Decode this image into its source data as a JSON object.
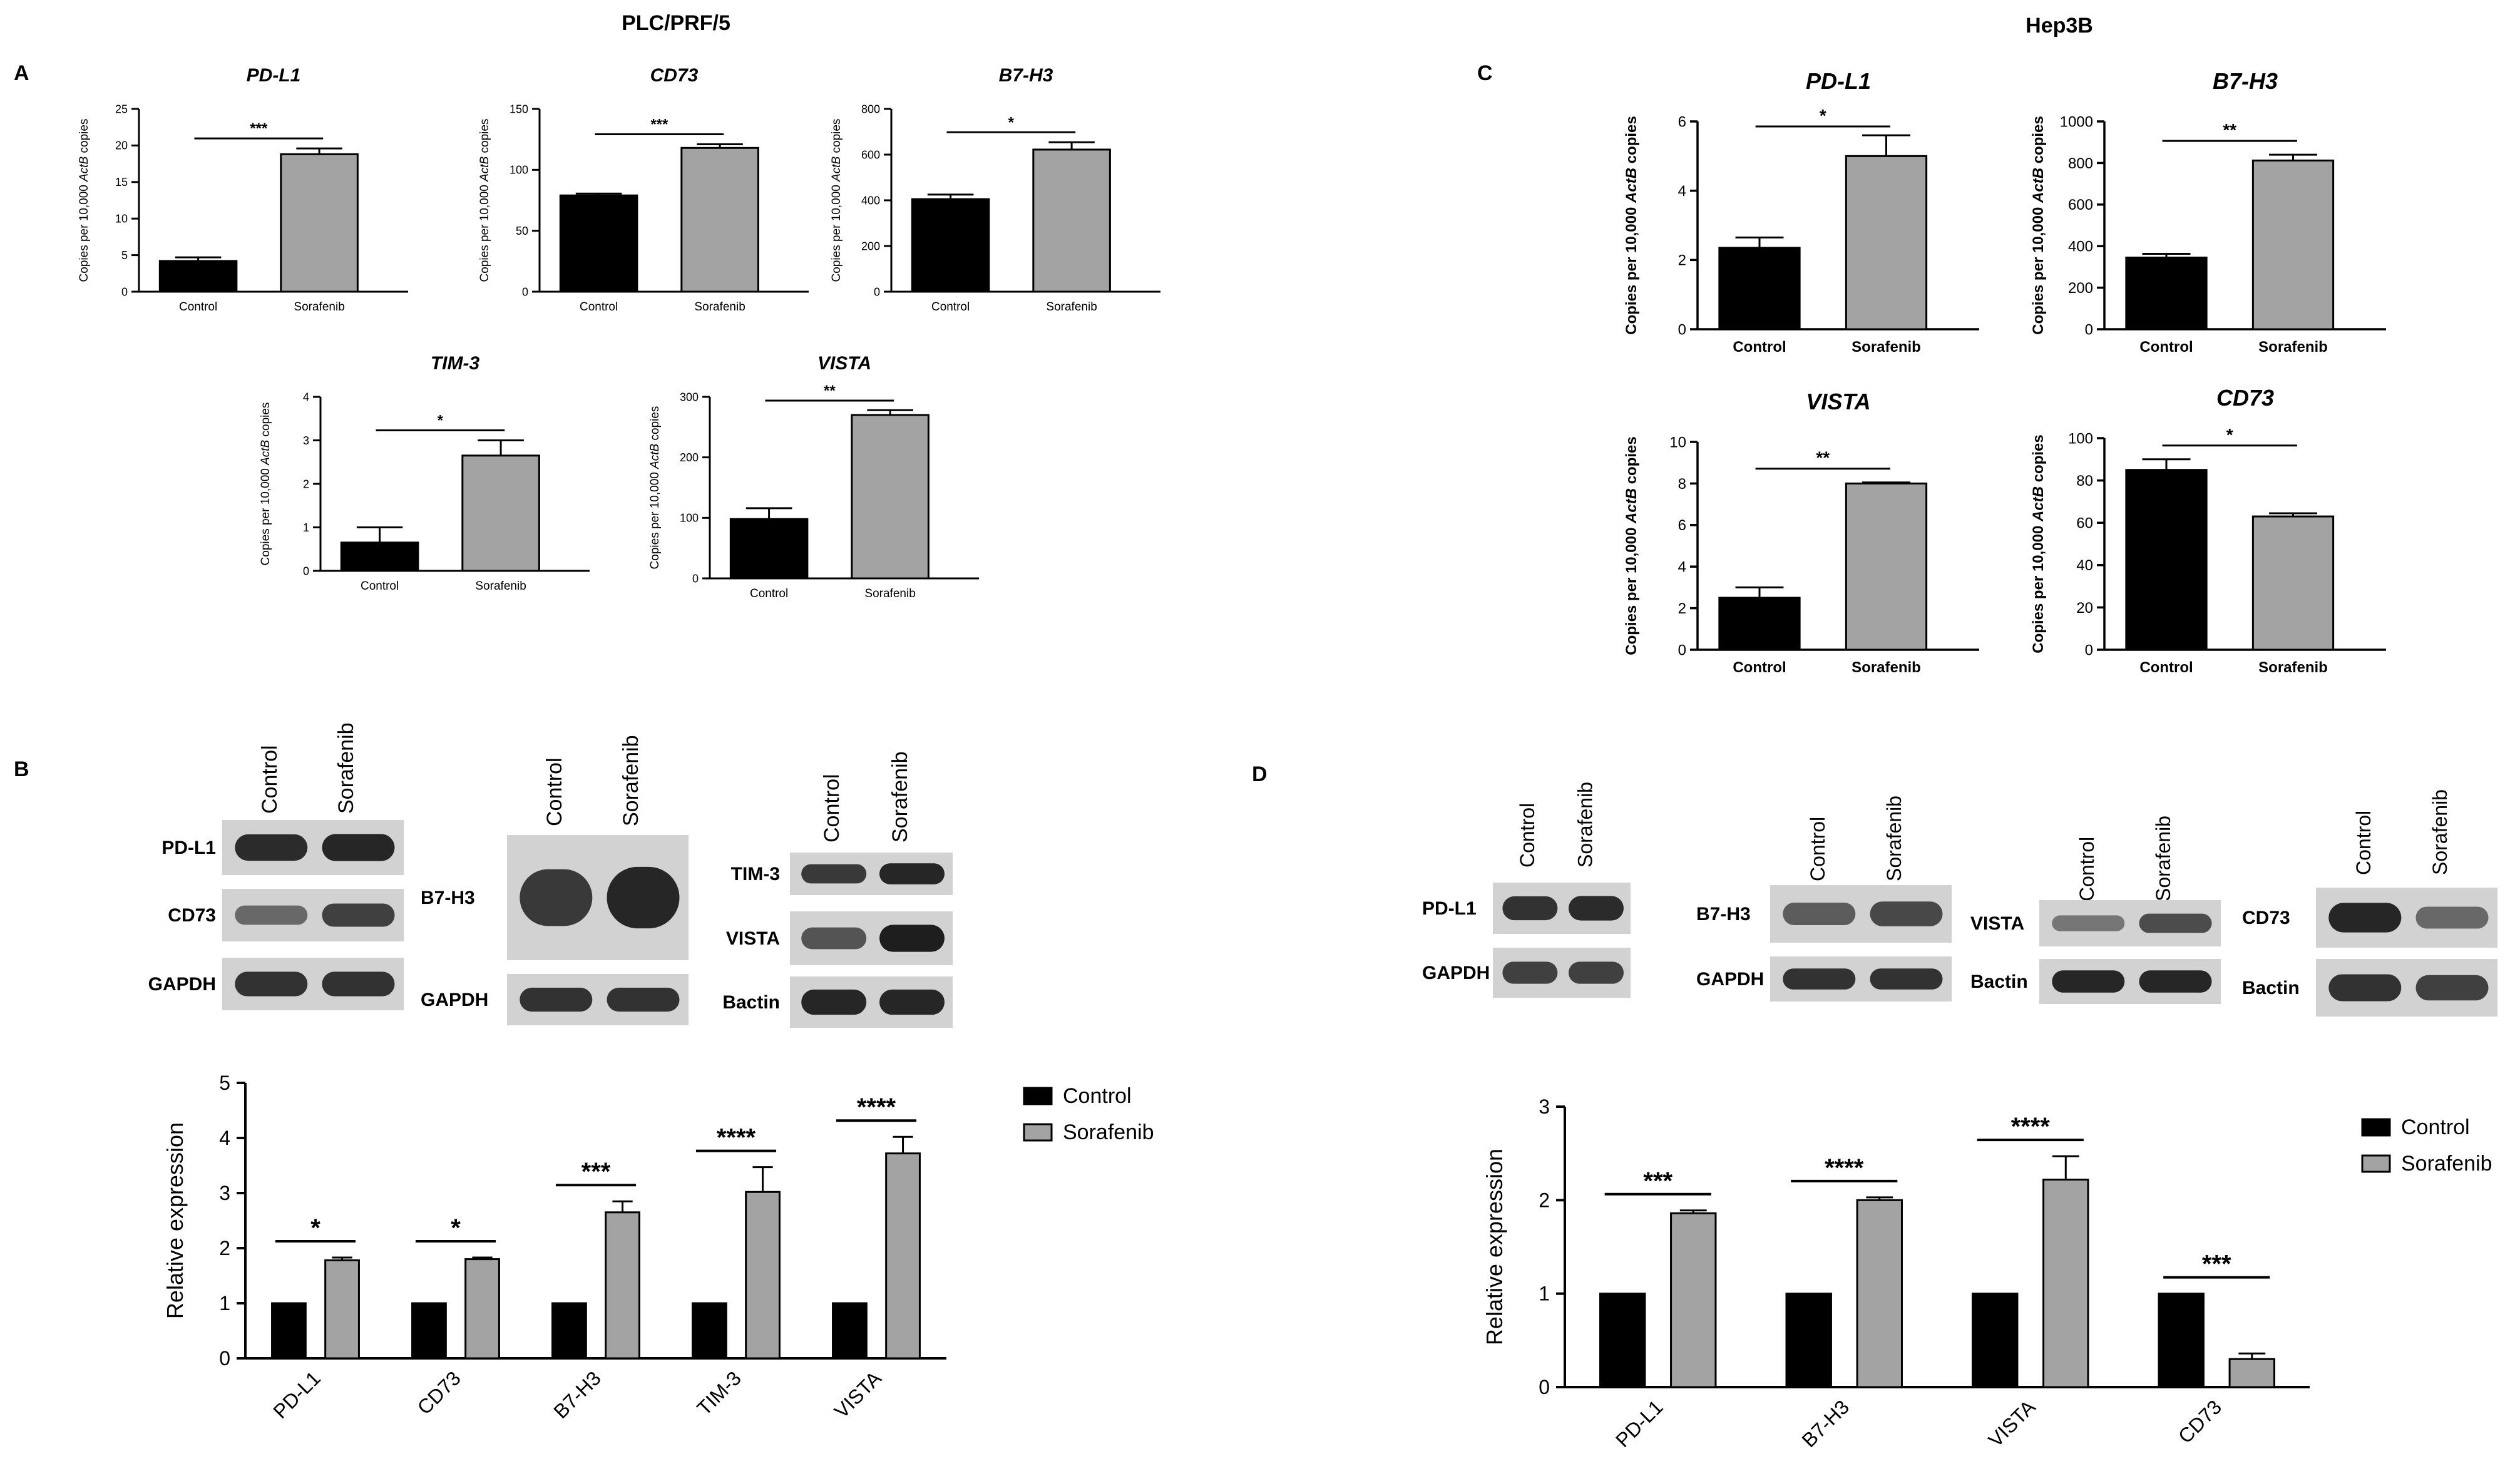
{
  "figure": {
    "cell_line_left": "PLC/PRF/5",
    "cell_line_right": "Hep3B",
    "panel_labels": [
      "A",
      "B",
      "C",
      "D"
    ]
  },
  "colors": {
    "control": "#000000",
    "sorafenib": "#a3a3a3",
    "blot_background": "#d2d2d2",
    "blot_band": "#1e1e1e"
  },
  "chart_data": [
    {
      "id": "A-PD-L1",
      "panel": "A",
      "type": "bar",
      "title": "PD-L1",
      "categories": [
        "Control",
        "Sorafenib"
      ],
      "values": [
        4.2,
        18.8
      ],
      "errors": [
        0.5,
        0.8
      ],
      "ylabel_prefix": "Copies per 10,000 ",
      "ylabel_italic": "ActB",
      "ylabel_suffix": " copies",
      "ylim": [
        0,
        25
      ],
      "yticks": [
        "0",
        "5",
        "10",
        "15",
        "20",
        "25"
      ],
      "significance": [
        {
          "from": 0,
          "to": 1,
          "label": "***"
        }
      ],
      "style": "small"
    },
    {
      "id": "A-CD73",
      "panel": "A",
      "type": "bar",
      "title": "CD73",
      "categories": [
        "Control",
        "Sorafenib"
      ],
      "values": [
        79,
        118
      ],
      "errors": [
        1.5,
        3
      ],
      "ylabel_prefix": "Copies per 10,000 ",
      "ylabel_italic": "ActB",
      "ylabel_suffix": " copies",
      "ylim": [
        0,
        150
      ],
      "yticks": [
        "0",
        "50",
        "100",
        "150"
      ],
      "significance": [
        {
          "from": 0,
          "to": 1,
          "label": "***"
        }
      ],
      "style": "small"
    },
    {
      "id": "A-B7-H3",
      "panel": "A",
      "type": "bar",
      "title": "B7-H3",
      "categories": [
        "Control",
        "Sorafenib"
      ],
      "values": [
        405,
        622
      ],
      "errors": [
        20,
        32
      ],
      "ylabel_prefix": "Copies per 10,000 ",
      "ylabel_italic": "ActB",
      "ylabel_suffix": " copies",
      "ylim": [
        0,
        800
      ],
      "yticks": [
        "0",
        "200",
        "400",
        "600",
        "800"
      ],
      "significance": [
        {
          "from": 0,
          "to": 1,
          "label": "*"
        }
      ],
      "style": "small"
    },
    {
      "id": "A-TIM-3",
      "panel": "A",
      "type": "bar",
      "title": "TIM-3",
      "categories": [
        "Control",
        "Sorafenib"
      ],
      "values": [
        0.65,
        2.65
      ],
      "errors": [
        0.35,
        0.35
      ],
      "ylabel_prefix": "Copies per 10,000 ",
      "ylabel_italic": "ActB",
      "ylabel_suffix": " copies",
      "ylim": [
        0,
        4
      ],
      "yticks": [
        "0",
        "1",
        "2",
        "3",
        "4"
      ],
      "significance": [
        {
          "from": 0,
          "to": 1,
          "label": "*"
        }
      ],
      "style": "small"
    },
    {
      "id": "A-VISTA",
      "panel": "A",
      "type": "bar",
      "title": "VISTA",
      "categories": [
        "Control",
        "Sorafenib"
      ],
      "values": [
        98,
        270
      ],
      "errors": [
        18,
        8
      ],
      "ylabel_prefix": "Copies per 10,000 ",
      "ylabel_italic": "ActB",
      "ylabel_suffix": " copies",
      "ylim": [
        0,
        300
      ],
      "yticks": [
        "0",
        "100",
        "200",
        "300"
      ],
      "significance": [
        {
          "from": 0,
          "to": 1,
          "label": "**"
        }
      ],
      "style": "small"
    },
    {
      "id": "C-PD-L1",
      "panel": "C",
      "type": "bar",
      "title": "PD-L1",
      "categories": [
        "Control",
        "Sorafenib"
      ],
      "values": [
        2.35,
        5.0
      ],
      "errors": [
        0.3,
        0.6
      ],
      "ylabel_prefix": "Copies per 10,000 ",
      "ylabel_italic": "ActB",
      "ylabel_suffix": " copies",
      "ylim": [
        0,
        6
      ],
      "yticks": [
        "0",
        "2",
        "4",
        "6"
      ],
      "significance": [
        {
          "from": 0,
          "to": 1,
          "label": "*"
        }
      ],
      "style": "large"
    },
    {
      "id": "C-B7-H3",
      "panel": "C",
      "type": "bar",
      "title": "B7-H3",
      "categories": [
        "Control",
        "Sorafenib"
      ],
      "values": [
        345,
        812
      ],
      "errors": [
        18,
        28
      ],
      "ylabel_prefix": "Copies per 10,000 ",
      "ylabel_italic": "ActB",
      "ylabel_suffix": " copies",
      "ylim": [
        0,
        1000
      ],
      "yticks": [
        "0",
        "200",
        "400",
        "600",
        "800",
        "1000"
      ],
      "significance": [
        {
          "from": 0,
          "to": 1,
          "label": "**"
        }
      ],
      "style": "large"
    },
    {
      "id": "C-VISTA",
      "panel": "C",
      "type": "bar",
      "title": "VISTA",
      "categories": [
        "Control",
        "Sorafenib"
      ],
      "values": [
        2.5,
        8.0
      ],
      "errors": [
        0.5,
        0.05
      ],
      "ylabel_prefix": "Copies per 10,000 ",
      "ylabel_italic": "ActB",
      "ylabel_suffix": " copies",
      "ylim": [
        0,
        10
      ],
      "yticks": [
        "0",
        "2",
        "4",
        "6",
        "8",
        "10"
      ],
      "significance": [
        {
          "from": 0,
          "to": 1,
          "label": "**"
        }
      ],
      "style": "large"
    },
    {
      "id": "C-CD73",
      "panel": "C",
      "type": "bar",
      "title": "CD73",
      "categories": [
        "Control",
        "Sorafenib"
      ],
      "values": [
        85,
        63
      ],
      "errors": [
        5,
        1.5
      ],
      "ylabel_prefix": "Copies per 10,000 ",
      "ylabel_italic": "ActB",
      "ylabel_suffix": " copies",
      "ylim": [
        0,
        100
      ],
      "yticks": [
        "0",
        "20",
        "40",
        "60",
        "80",
        "100"
      ],
      "significance": [
        {
          "from": 0,
          "to": 1,
          "label": "*"
        }
      ],
      "style": "large"
    },
    {
      "id": "B-quant",
      "panel": "B",
      "type": "bar",
      "categories": [
        "PD-L1",
        "CD73",
        "B7-H3",
        "TIM-3",
        "VISTA"
      ],
      "series": [
        {
          "name": "Control",
          "values": [
            1,
            1,
            1,
            1,
            1
          ],
          "errors": [
            0,
            0,
            0,
            0,
            0
          ]
        },
        {
          "name": "Sorafenib",
          "values": [
            1.78,
            1.8,
            2.65,
            3.02,
            3.72
          ],
          "errors": [
            0.05,
            0.03,
            0.2,
            0.45,
            0.3
          ]
        }
      ],
      "ylabel": "Relative expression",
      "ylim": [
        0,
        5
      ],
      "yticks": [
        "0",
        "1",
        "2",
        "3",
        "4",
        "5"
      ],
      "significance": [
        "*",
        "*",
        "***",
        "****",
        "****"
      ],
      "legend": "right"
    },
    {
      "id": "D-quant",
      "panel": "D",
      "type": "bar",
      "categories": [
        "PD-L1",
        "B7-H3",
        "VISTA",
        "CD73"
      ],
      "series": [
        {
          "name": "Control",
          "values": [
            1,
            1,
            1,
            1
          ],
          "errors": [
            0,
            0,
            0,
            0
          ]
        },
        {
          "name": "Sorafenib",
          "values": [
            1.86,
            2.0,
            2.22,
            0.3
          ],
          "errors": [
            0.03,
            0.03,
            0.25,
            0.06
          ]
        }
      ],
      "ylabel": "Relative expression",
      "ylim": [
        0,
        3
      ],
      "yticks": [
        "0",
        "1",
        "2",
        "3"
      ],
      "significance": [
        "***",
        "****",
        "****",
        "***"
      ],
      "legend": "right"
    }
  ],
  "blots": {
    "B": {
      "groups": [
        {
          "header": [
            "Control",
            "Sorafenib"
          ],
          "rows": [
            {
              "label": "PD-L1",
              "intensity": [
                0.9,
                0.95
              ]
            },
            {
              "label": "CD73",
              "intensity": [
                0.45,
                0.75
              ]
            },
            {
              "label": "GAPDH",
              "intensity": [
                0.85,
                0.85
              ]
            }
          ]
        },
        {
          "header": [
            "Control",
            "Sorafenib"
          ],
          "rows": [
            {
              "label": "B7-H3",
              "intensity": [
                0.8,
                0.95
              ]
            },
            {
              "label": "GAPDH",
              "intensity": [
                0.85,
                0.85
              ]
            }
          ]
        },
        {
          "header": [
            "Control",
            "Sorafenib"
          ],
          "rows": [
            {
              "label": "TIM-3",
              "intensity": [
                0.8,
                0.95
              ]
            },
            {
              "label": "VISTA",
              "intensity": [
                0.6,
                1.0
              ]
            },
            {
              "label": "Bactin",
              "intensity": [
                0.95,
                0.95
              ]
            }
          ]
        }
      ]
    },
    "D": {
      "groups": [
        {
          "header": [
            "Control",
            "Sorafenib"
          ],
          "rows": [
            {
              "label": "PD-L1",
              "intensity": [
                0.85,
                0.9
              ]
            },
            {
              "label": "GAPDH",
              "intensity": [
                0.75,
                0.75
              ]
            }
          ]
        },
        {
          "header": [
            "Control",
            "Sorafenib"
          ],
          "rows": [
            {
              "label": "B7-H3",
              "intensity": [
                0.55,
                0.7
              ]
            },
            {
              "label": "GAPDH",
              "intensity": [
                0.85,
                0.85
              ]
            }
          ]
        },
        {
          "header": [
            "Control",
            "Sorafenib"
          ],
          "rows": [
            {
              "label": "VISTA",
              "intensity": [
                0.35,
                0.65
              ]
            },
            {
              "label": "Bactin",
              "intensity": [
                0.95,
                0.95
              ]
            }
          ]
        },
        {
          "header": [
            "Control",
            "Sorafenib"
          ],
          "rows": [
            {
              "label": "CD73",
              "intensity": [
                0.95,
                0.45
              ]
            },
            {
              "label": "Bactin",
              "intensity": [
                0.85,
                0.75
              ]
            }
          ]
        }
      ]
    }
  }
}
